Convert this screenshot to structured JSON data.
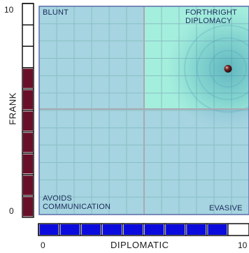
{
  "chart_data": {
    "type": "scatter",
    "title": "",
    "xlabel": "DIPLOMATIC",
    "ylabel": "FRANK",
    "xlim": [
      0,
      10
    ],
    "ylim": [
      0,
      10
    ],
    "x_ticks": [
      "0",
      "10"
    ],
    "y_ticks": [
      "0",
      "10"
    ],
    "grid": true,
    "quadrants": {
      "top_left": "BLUNT",
      "top_right_line1": "FORTHRIGHT",
      "top_right_line2": "DIPLOMACY",
      "bottom_left_line1": "AVOIDS",
      "bottom_left_line2": "COMMUNICATION",
      "bottom_right": "EVASIVE"
    },
    "points": [
      {
        "x": 9.0,
        "y": 7.0
      }
    ],
    "x_meter": {
      "segments": 10,
      "filled": 9
    },
    "y_meter": {
      "segments": 10,
      "filled": 7
    },
    "colors": {
      "background": "#a6d4e0",
      "highlight_quadrant": "#a4eedd",
      "grid": "#87c0c2",
      "divider": "#a9a9b2",
      "border": "#5a6aa8",
      "x_meter_fill": "#0b0bde",
      "y_meter_fill": "#6a0f2a",
      "point": "#3a1414"
    }
  }
}
